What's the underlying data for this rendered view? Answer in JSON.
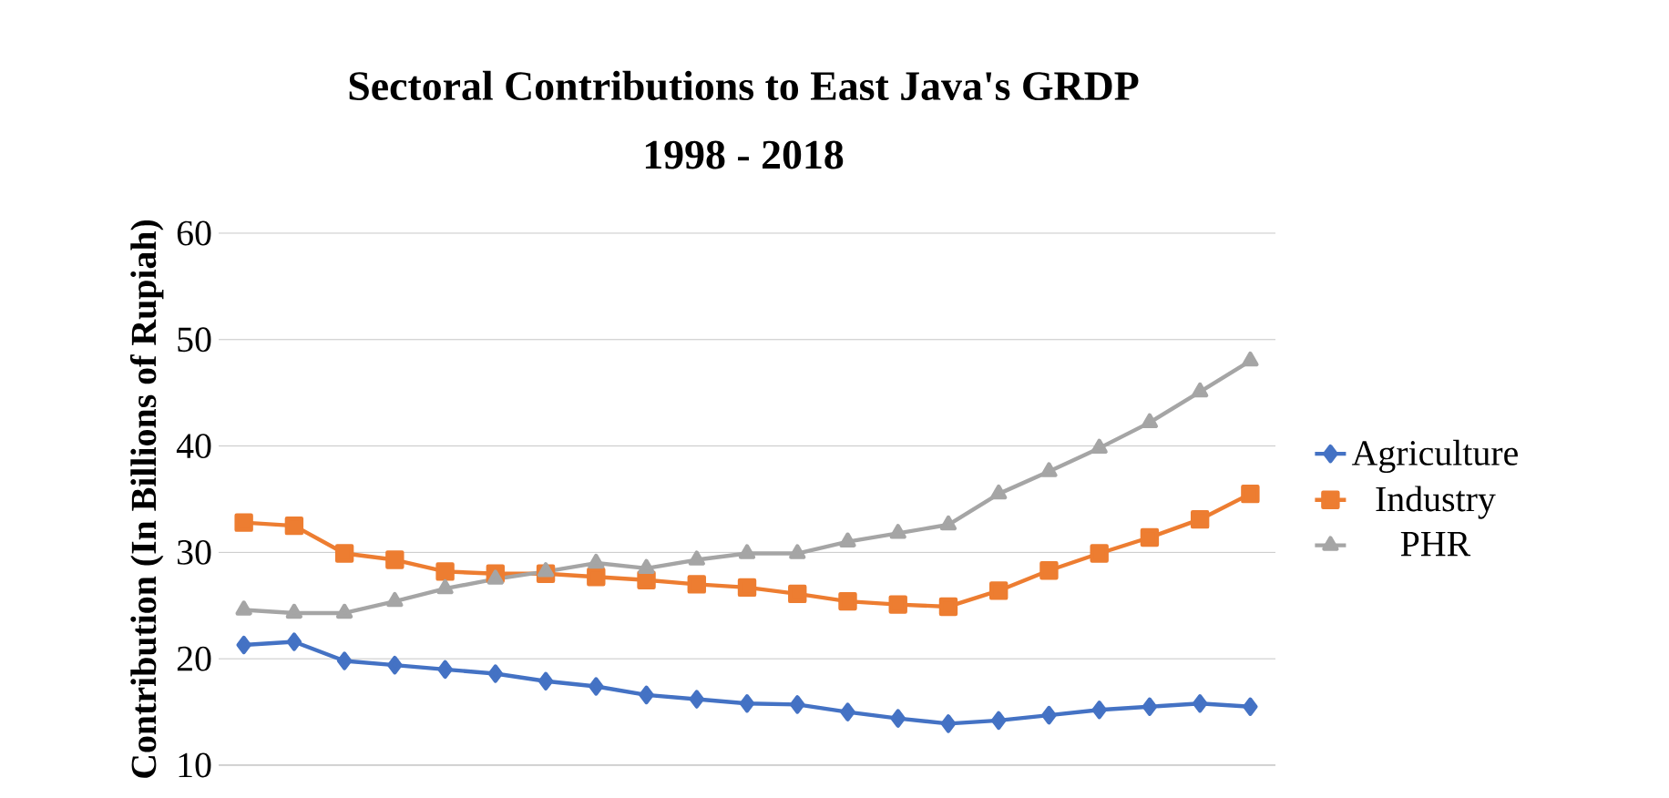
{
  "chart_data": {
    "type": "line",
    "title": "Sectoral Contributions to East Java's GRDP",
    "subtitle": "1998 - 2018",
    "ylabel": "Contribution (In Billions of Rupiah)",
    "categories": [
      null,
      null,
      null,
      null,
      null,
      null,
      null,
      null,
      null,
      null,
      null,
      null,
      null,
      null,
      null,
      null,
      null,
      null,
      null,
      null,
      null
    ],
    "ylim": [
      10,
      60
    ],
    "yticks": [
      10,
      20,
      30,
      40,
      50,
      60
    ],
    "grid": "y",
    "legend": "right",
    "line_style": "solid",
    "series": [
      {
        "name": "Agriculture",
        "color": "#4472c4",
        "marker": "diamond",
        "values": [
          21.3,
          21.6,
          19.8,
          19.4,
          19.0,
          18.6,
          17.9,
          17.4,
          16.6,
          16.2,
          15.8,
          15.7,
          15.0,
          14.4,
          13.9,
          14.2,
          14.7,
          15.2,
          15.5,
          15.8,
          15.5
        ]
      },
      {
        "name": "Industry",
        "color": "#ed7d31",
        "marker": "square",
        "values": [
          32.8,
          32.5,
          29.9,
          29.3,
          28.2,
          28.0,
          28.0,
          27.7,
          27.4,
          27.0,
          26.7,
          26.1,
          25.4,
          25.1,
          24.9,
          26.4,
          28.3,
          29.9,
          31.4,
          33.1,
          35.5
        ]
      },
      {
        "name": "PHR",
        "color": "#a5a5a5",
        "marker": "triangle",
        "values": [
          24.6,
          24.3,
          24.3,
          25.4,
          26.6,
          27.5,
          28.2,
          29.0,
          28.5,
          29.3,
          29.9,
          29.9,
          31.0,
          31.8,
          32.6,
          35.5,
          37.6,
          39.8,
          42.2,
          45.1,
          48.0
        ]
      }
    ]
  }
}
